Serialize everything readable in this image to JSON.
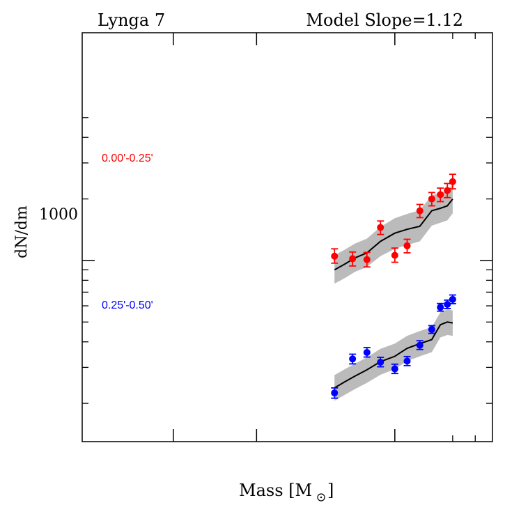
{
  "chart_data": {
    "type": "scatter",
    "title_left": "Lynga 7",
    "title_right": "Model Slope=1.12",
    "xlabel": "Mass [M",
    "xlabel_suffix": "]",
    "ylabel": "dN/dm",
    "y_tick_label": "1000",
    "y_scale": "log",
    "xlim": [
      0.0,
      1.0
    ],
    "ylim": [
      130,
      13000
    ],
    "series": [
      {
        "name": "0.00'-0.25'",
        "color": "#ff0000",
        "points": [
          {
            "x": 0.615,
            "y": 1050,
            "yerr_lo": 970,
            "yerr_hi": 1140
          },
          {
            "x": 0.659,
            "y": 1020,
            "yerr_lo": 940,
            "yerr_hi": 1100
          },
          {
            "x": 0.694,
            "y": 1010,
            "yerr_lo": 930,
            "yerr_hi": 1095
          },
          {
            "x": 0.727,
            "y": 1450,
            "yerr_lo": 1340,
            "yerr_hi": 1560
          },
          {
            "x": 0.762,
            "y": 1060,
            "yerr_lo": 980,
            "yerr_hi": 1150
          },
          {
            "x": 0.792,
            "y": 1180,
            "yerr_lo": 1090,
            "yerr_hi": 1270
          },
          {
            "x": 0.823,
            "y": 1750,
            "yerr_lo": 1620,
            "yerr_hi": 1880
          },
          {
            "x": 0.852,
            "y": 2000,
            "yerr_lo": 1850,
            "yerr_hi": 2150
          },
          {
            "x": 0.873,
            "y": 2100,
            "yerr_lo": 1940,
            "yerr_hi": 2260
          },
          {
            "x": 0.89,
            "y": 2200,
            "yerr_lo": 2030,
            "yerr_hi": 2380
          },
          {
            "x": 0.903,
            "y": 2430,
            "yerr_lo": 2240,
            "yerr_hi": 2640
          }
        ]
      },
      {
        "name": "0.25'-0.50'",
        "color": "#0000ff",
        "points": [
          {
            "x": 0.615,
            "y": 225,
            "yerr_lo": 212,
            "yerr_hi": 238
          },
          {
            "x": 0.659,
            "y": 330,
            "yerr_lo": 312,
            "yerr_hi": 348
          },
          {
            "x": 0.694,
            "y": 355,
            "yerr_lo": 337,
            "yerr_hi": 375
          },
          {
            "x": 0.727,
            "y": 318,
            "yerr_lo": 302,
            "yerr_hi": 336
          },
          {
            "x": 0.762,
            "y": 295,
            "yerr_lo": 280,
            "yerr_hi": 311
          },
          {
            "x": 0.792,
            "y": 322,
            "yerr_lo": 306,
            "yerr_hi": 339
          },
          {
            "x": 0.823,
            "y": 385,
            "yerr_lo": 367,
            "yerr_hi": 405
          },
          {
            "x": 0.852,
            "y": 460,
            "yerr_lo": 440,
            "yerr_hi": 480
          },
          {
            "x": 0.873,
            "y": 590,
            "yerr_lo": 565,
            "yerr_hi": 616
          },
          {
            "x": 0.89,
            "y": 610,
            "yerr_lo": 582,
            "yerr_hi": 640
          },
          {
            "x": 0.903,
            "y": 645,
            "yerr_lo": 615,
            "yerr_hi": 678
          }
        ]
      }
    ],
    "models": [
      {
        "series": "0.00'-0.25'",
        "line_color": "#000000",
        "band_color": "#bbbbbb",
        "x": [
          0.615,
          0.64,
          0.665,
          0.694,
          0.727,
          0.762,
          0.792,
          0.823,
          0.852,
          0.873,
          0.89,
          0.903
        ],
        "y": [
          900,
          960,
          1030,
          1090,
          1240,
          1360,
          1420,
          1470,
          1750,
          1800,
          1850,
          2000
        ],
        "band_lo": [
          770,
          820,
          880,
          930,
          1050,
          1140,
          1190,
          1240,
          1480,
          1530,
          1570,
          1700
        ],
        "band_hi": [
          1060,
          1130,
          1210,
          1280,
          1460,
          1610,
          1690,
          1760,
          2080,
          2140,
          2200,
          2370
        ]
      },
      {
        "series": "0.25'-0.50'",
        "line_color": "#000000",
        "band_color": "#bbbbbb",
        "x": [
          0.615,
          0.64,
          0.665,
          0.694,
          0.727,
          0.762,
          0.792,
          0.823,
          0.852,
          0.873,
          0.89,
          0.903
        ],
        "y": [
          238,
          255,
          272,
          292,
          320,
          340,
          372,
          392,
          410,
          485,
          500,
          495
        ],
        "band_lo": [
          206,
          220,
          235,
          252,
          276,
          294,
          322,
          340,
          356,
          420,
          432,
          428
        ],
        "band_hi": [
          275,
          294,
          313,
          336,
          370,
          392,
          428,
          452,
          472,
          558,
          576,
          570
        ]
      }
    ],
    "grid": false
  }
}
